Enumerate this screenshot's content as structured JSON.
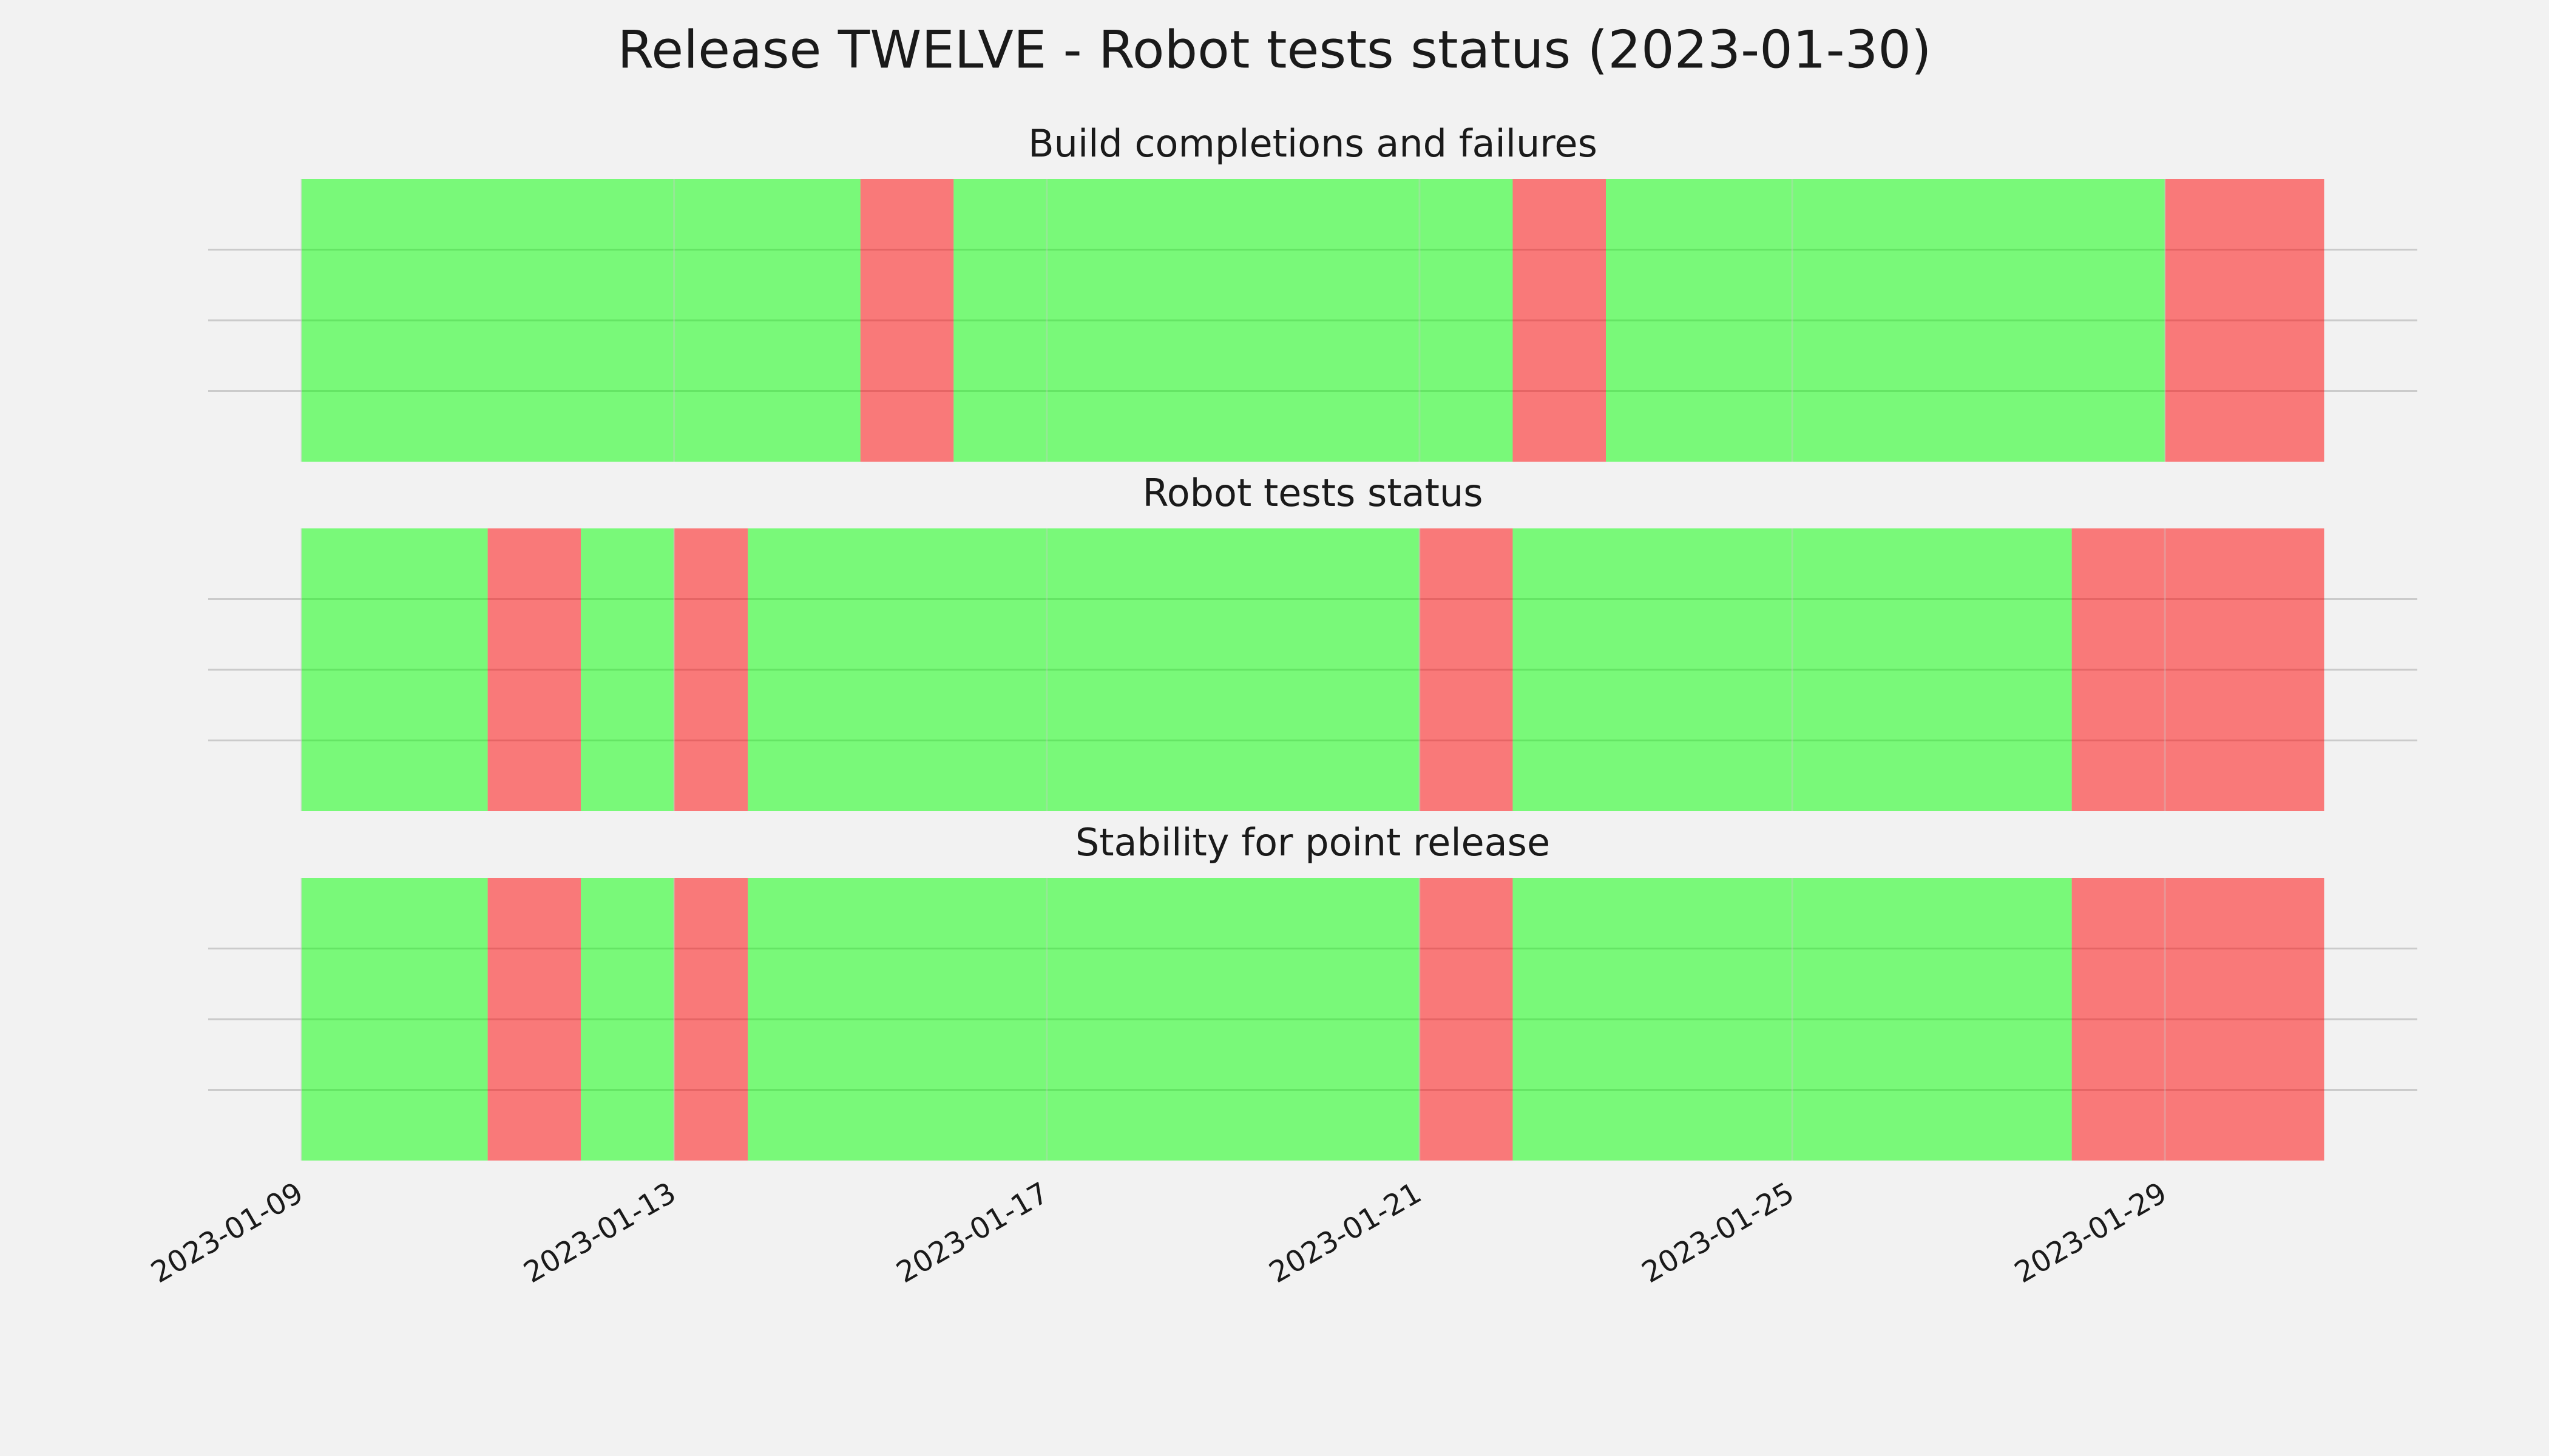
{
  "title": "Release TWELVE - Robot tests status (2023-01-30)",
  "chart_data": [
    {
      "type": "timeline",
      "title": "Build completions and failures",
      "xlim": [
        "2023-01-08T00:00",
        "2023-01-31T17:00"
      ],
      "xticks": [
        "2023-01-09",
        "2023-01-13",
        "2023-01-17",
        "2023-01-21",
        "2023-01-25",
        "2023-01-29"
      ],
      "ylim": [
        0,
        1
      ],
      "yticks": [
        0.25,
        0.5,
        0.75
      ],
      "grid": true,
      "alpha": 0.5,
      "spans": [
        {
          "start": "2023-01-09",
          "end": "2023-01-15",
          "color": "#00ff00"
        },
        {
          "start": "2023-01-15",
          "end": "2023-01-16",
          "color": "#ff0000"
        },
        {
          "start": "2023-01-16",
          "end": "2023-01-22",
          "color": "#00ff00"
        },
        {
          "start": "2023-01-22",
          "end": "2023-01-23",
          "color": "#ff0000"
        },
        {
          "start": "2023-01-23",
          "end": "2023-01-29",
          "color": "#00ff00"
        },
        {
          "start": "2023-01-29",
          "end": "2023-01-30T17:00",
          "color": "#ff0000"
        }
      ]
    },
    {
      "type": "timeline",
      "title": "Robot tests status",
      "xlim": [
        "2023-01-08T00:00",
        "2023-01-31T17:00"
      ],
      "xticks": [
        "2023-01-09",
        "2023-01-13",
        "2023-01-17",
        "2023-01-21",
        "2023-01-25",
        "2023-01-29"
      ],
      "ylim": [
        0,
        1
      ],
      "yticks": [
        0.25,
        0.5,
        0.75
      ],
      "grid": true,
      "alpha": 0.5,
      "spans": [
        {
          "start": "2023-01-09",
          "end": "2023-01-11",
          "color": "#00ff00"
        },
        {
          "start": "2023-01-11",
          "end": "2023-01-12",
          "color": "#ff0000"
        },
        {
          "start": "2023-01-12",
          "end": "2023-01-13",
          "color": "#00ff00"
        },
        {
          "start": "2023-01-13",
          "end": "2023-01-13T19:00",
          "color": "#ff0000"
        },
        {
          "start": "2023-01-13T19:00",
          "end": "2023-01-21",
          "color": "#00ff00"
        },
        {
          "start": "2023-01-21",
          "end": "2023-01-22",
          "color": "#ff0000"
        },
        {
          "start": "2023-01-22",
          "end": "2023-01-28",
          "color": "#00ff00"
        },
        {
          "start": "2023-01-28",
          "end": "2023-01-30T17:00",
          "color": "#ff0000"
        }
      ]
    },
    {
      "type": "timeline",
      "title": "Stability for point release",
      "xlim": [
        "2023-01-08T00:00",
        "2023-01-31T17:00"
      ],
      "xticks": [
        "2023-01-09",
        "2023-01-13",
        "2023-01-17",
        "2023-01-21",
        "2023-01-25",
        "2023-01-29"
      ],
      "ylim": [
        0,
        1
      ],
      "yticks": [
        0.25,
        0.5,
        0.75
      ],
      "grid": true,
      "alpha": 0.5,
      "spans": [
        {
          "start": "2023-01-09",
          "end": "2023-01-11",
          "color": "#00ff00"
        },
        {
          "start": "2023-01-11",
          "end": "2023-01-12",
          "color": "#ff0000"
        },
        {
          "start": "2023-01-12",
          "end": "2023-01-13",
          "color": "#00ff00"
        },
        {
          "start": "2023-01-13",
          "end": "2023-01-13T19:00",
          "color": "#ff0000"
        },
        {
          "start": "2023-01-13T19:00",
          "end": "2023-01-21",
          "color": "#00ff00"
        },
        {
          "start": "2023-01-21",
          "end": "2023-01-22",
          "color": "#ff0000"
        },
        {
          "start": "2023-01-22",
          "end": "2023-01-28",
          "color": "#00ff00"
        },
        {
          "start": "2023-01-28",
          "end": "2023-01-30T17:00",
          "color": "#ff0000"
        }
      ]
    }
  ]
}
